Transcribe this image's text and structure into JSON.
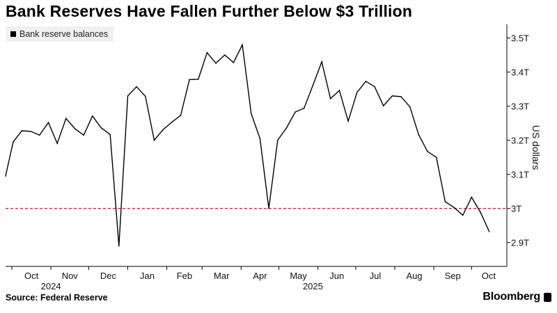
{
  "title": "Bank Reserves Have Fallen Further Below $3 Trillion",
  "legend": {
    "label": "Bank reserve balances"
  },
  "footer": {
    "source": "Source: Federal Reserve",
    "brand": "Bloomberg"
  },
  "colors": {
    "line": "#000000",
    "reference": "#d6243c",
    "grid": "#cccccc"
  },
  "chart_data": {
    "type": "line",
    "title": "Bank Reserves Have Fallen Further Below $3 Trillion",
    "ylabel": "US dollars",
    "xlabel": "",
    "ylim": [
      2.83,
      3.54
    ],
    "y_ticks": [
      {
        "value": 3.5,
        "label": "3.5T"
      },
      {
        "value": 3.4,
        "label": "3.4T"
      },
      {
        "value": 3.3,
        "label": "3.3T"
      },
      {
        "value": 3.2,
        "label": "3.2T"
      },
      {
        "value": 3.1,
        "label": "3.1T"
      },
      {
        "value": 3.0,
        "label": "3T"
      },
      {
        "value": 2.9,
        "label": "2.9T"
      }
    ],
    "x_range": [
      "2024-09-26",
      "2025-10-29"
    ],
    "x_ticks": [
      {
        "date": "2024-10-01",
        "label": "Oct"
      },
      {
        "date": "2024-11-01",
        "label": "Nov"
      },
      {
        "date": "2024-12-01",
        "label": "Dec"
      },
      {
        "date": "2025-01-01",
        "label": "Jan"
      },
      {
        "date": "2025-02-01",
        "label": "Feb"
      },
      {
        "date": "2025-03-01",
        "label": "Mar"
      },
      {
        "date": "2025-04-01",
        "label": "Apr"
      },
      {
        "date": "2025-05-01",
        "label": "May"
      },
      {
        "date": "2025-06-01",
        "label": "Jun"
      },
      {
        "date": "2025-07-01",
        "label": "Jul"
      },
      {
        "date": "2025-08-01",
        "label": "Aug"
      },
      {
        "date": "2025-09-01",
        "label": "Sep"
      },
      {
        "date": "2025-10-01",
        "label": "Oct"
      }
    ],
    "year_labels": [
      {
        "date": "2024-11-01",
        "label": "2024"
      },
      {
        "date": "2025-05-28",
        "label": "2025"
      }
    ],
    "reference_line": {
      "value": 3.0,
      "style": "dashed"
    },
    "legend_position": "top-left",
    "grid": false,
    "series": [
      {
        "name": "Bank reserve balances",
        "points": [
          [
            "2024-09-26",
            3.095
          ],
          [
            "2024-10-02",
            3.195
          ],
          [
            "2024-10-09",
            3.228
          ],
          [
            "2024-10-16",
            3.226
          ],
          [
            "2024-10-23",
            3.215
          ],
          [
            "2024-10-30",
            3.252
          ],
          [
            "2024-11-06",
            3.191
          ],
          [
            "2024-11-13",
            3.264
          ],
          [
            "2024-11-20",
            3.234
          ],
          [
            "2024-11-27",
            3.215
          ],
          [
            "2024-12-04",
            3.271
          ],
          [
            "2024-12-11",
            3.236
          ],
          [
            "2024-12-18",
            3.217
          ],
          [
            "2024-12-25",
            2.89
          ],
          [
            "2025-01-01",
            3.33
          ],
          [
            "2025-01-08",
            3.357
          ],
          [
            "2025-01-15",
            3.329
          ],
          [
            "2025-01-22",
            3.2
          ],
          [
            "2025-01-29",
            3.231
          ],
          [
            "2025-02-05",
            3.253
          ],
          [
            "2025-02-12",
            3.273
          ],
          [
            "2025-02-19",
            3.378
          ],
          [
            "2025-02-26",
            3.379
          ],
          [
            "2025-03-05",
            3.457
          ],
          [
            "2025-03-12",
            3.426
          ],
          [
            "2025-03-19",
            3.45
          ],
          [
            "2025-03-26",
            3.428
          ],
          [
            "2025-04-02",
            3.48
          ],
          [
            "2025-04-09",
            3.278
          ],
          [
            "2025-04-16",
            3.205
          ],
          [
            "2025-04-23",
            3.0
          ],
          [
            "2025-04-30",
            3.2
          ],
          [
            "2025-05-07",
            3.236
          ],
          [
            "2025-05-14",
            3.283
          ],
          [
            "2025-05-21",
            3.294
          ],
          [
            "2025-05-28",
            3.361
          ],
          [
            "2025-06-04",
            3.43
          ],
          [
            "2025-06-11",
            3.322
          ],
          [
            "2025-06-18",
            3.346
          ],
          [
            "2025-06-25",
            3.256
          ],
          [
            "2025-07-02",
            3.34
          ],
          [
            "2025-07-09",
            3.373
          ],
          [
            "2025-07-16",
            3.357
          ],
          [
            "2025-07-23",
            3.301
          ],
          [
            "2025-07-30",
            3.33
          ],
          [
            "2025-08-06",
            3.328
          ],
          [
            "2025-08-13",
            3.298
          ],
          [
            "2025-08-20",
            3.216
          ],
          [
            "2025-08-27",
            3.167
          ],
          [
            "2025-09-03",
            3.15
          ],
          [
            "2025-09-10",
            3.02
          ],
          [
            "2025-09-17",
            3.003
          ],
          [
            "2025-09-24",
            2.98
          ],
          [
            "2025-10-01",
            3.033
          ],
          [
            "2025-10-08",
            2.989
          ],
          [
            "2025-10-15",
            2.932
          ]
        ]
      }
    ]
  }
}
